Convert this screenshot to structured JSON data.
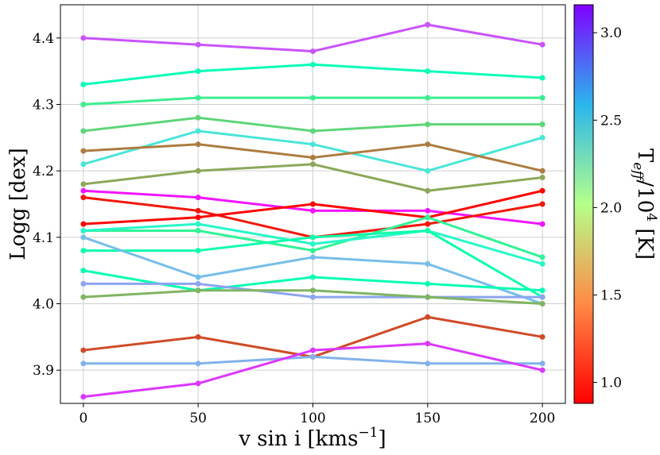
{
  "chart_data": {
    "type": "line",
    "x": [
      0,
      50,
      100,
      150,
      200
    ],
    "xlabel": "v sin i [kms",
    "xlabel_unit_sup": "−1",
    "xlabel_close": "]",
    "ylabel": "Logg [dex]",
    "xlim": [
      -10,
      210
    ],
    "ylim": [
      3.85,
      4.45
    ],
    "xticks": [
      "0",
      "50",
      "100",
      "150",
      "200"
    ],
    "yticks": [
      "3.9",
      "4.0",
      "4.1",
      "4.2",
      "4.3",
      "4.4"
    ],
    "grid": true,
    "colorbar": {
      "label_main": "T",
      "label_sub": "eff",
      "label_mid": "/10",
      "label_sup": "4",
      "label_unit": " [K]",
      "range": [
        0.88,
        3.16
      ],
      "ticks": [
        "1.0",
        "1.5",
        "2.0",
        "2.5",
        "3.0"
      ],
      "colormap": "rainbow"
    },
    "series": [
      {
        "teff": 2.92,
        "values": [
          4.4,
          4.39,
          4.38,
          4.42,
          4.39
        ]
      },
      {
        "teff": 2.05,
        "values": [
          4.33,
          4.35,
          4.36,
          4.35,
          4.34
        ]
      },
      {
        "teff": 1.75,
        "values": [
          4.3,
          4.31,
          4.31,
          4.31,
          4.31
        ]
      },
      {
        "teff": 1.6,
        "values": [
          4.26,
          4.28,
          4.26,
          4.27,
          4.27
        ]
      },
      {
        "teff": 2.35,
        "values": [
          4.21,
          4.26,
          4.24,
          4.2,
          4.25
        ]
      },
      {
        "teff": 1.25,
        "values": [
          4.23,
          4.24,
          4.22,
          4.24,
          4.2
        ]
      },
      {
        "teff": 1.4,
        "values": [
          4.18,
          4.2,
          4.21,
          4.17,
          4.19
        ]
      },
      {
        "teff": 3.1,
        "values": [
          4.17,
          4.16,
          4.14,
          4.14,
          4.12
        ]
      },
      {
        "teff": 0.95,
        "values": [
          4.16,
          4.14,
          4.1,
          4.12,
          4.15
        ]
      },
      {
        "teff": 0.9,
        "values": [
          4.12,
          4.13,
          4.15,
          4.13,
          4.17
        ]
      },
      {
        "teff": 1.8,
        "values": [
          4.11,
          4.11,
          4.08,
          4.13,
          4.07
        ]
      },
      {
        "teff": 2.2,
        "values": [
          4.11,
          4.12,
          4.09,
          4.11,
          4.06
        ]
      },
      {
        "teff": 1.95,
        "values": [
          4.08,
          4.08,
          4.1,
          4.11,
          4.01
        ]
      },
      {
        "teff": 2.55,
        "values": [
          4.1,
          4.04,
          4.07,
          4.06,
          4.0
        ]
      },
      {
        "teff": 2.0,
        "values": [
          4.05,
          4.02,
          4.04,
          4.03,
          4.02
        ]
      },
      {
        "teff": 2.65,
        "values": [
          4.03,
          4.03,
          4.01,
          4.01,
          4.01
        ]
      },
      {
        "teff": 1.45,
        "values": [
          4.01,
          4.02,
          4.02,
          4.01,
          4.0
        ]
      },
      {
        "teff": 1.1,
        "values": [
          3.93,
          3.95,
          3.92,
          3.98,
          3.95
        ]
      },
      {
        "teff": 2.6,
        "values": [
          3.91,
          3.91,
          3.92,
          3.91,
          3.91
        ]
      },
      {
        "teff": 3.0,
        "values": [
          3.86,
          3.88,
          3.93,
          3.94,
          3.9
        ]
      }
    ]
  }
}
